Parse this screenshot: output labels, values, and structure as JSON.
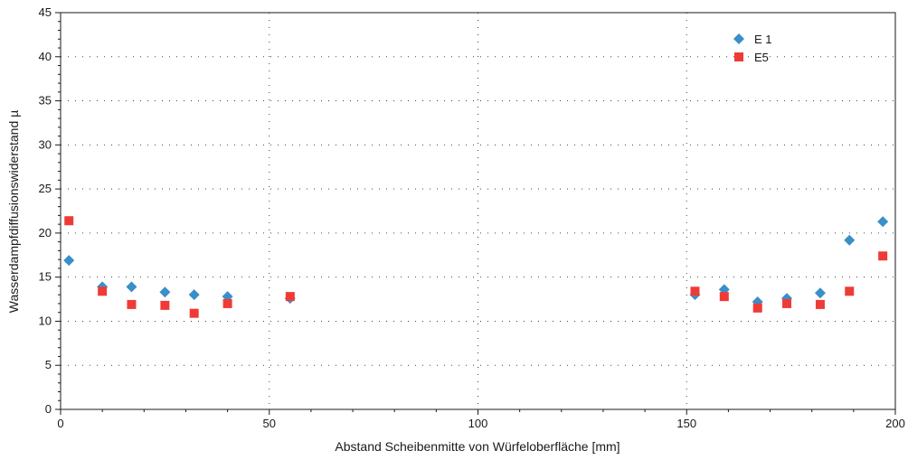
{
  "chart_data": {
    "type": "scatter",
    "xlabel": "Abstand Scheibenmitte von Würfeloberfläche [mm]",
    "ylabel": "Wasserdampfdiffusionswiderstand µ",
    "xlim": [
      0,
      200
    ],
    "ylim": [
      0,
      45
    ],
    "xticks": [
      0,
      50,
      100,
      150,
      200
    ],
    "yticks": [
      0,
      5,
      10,
      15,
      20,
      25,
      30,
      35,
      40,
      45
    ],
    "grid": "dotted",
    "legend_position": "top-right",
    "series": [
      {
        "name": "E 1",
        "marker": "diamond",
        "color": "#3a8fc8",
        "points": [
          [
            2,
            16.9
          ],
          [
            10,
            13.9
          ],
          [
            17,
            13.9
          ],
          [
            25,
            13.3
          ],
          [
            32,
            13.0
          ],
          [
            40,
            12.8
          ],
          [
            55,
            12.6
          ],
          [
            152,
            13.0
          ],
          [
            159,
            13.6
          ],
          [
            167,
            12.2
          ],
          [
            174,
            12.6
          ],
          [
            182,
            13.2
          ],
          [
            189,
            19.2
          ],
          [
            197,
            21.3
          ]
        ]
      },
      {
        "name": "E5",
        "marker": "square",
        "color": "#ef3b36",
        "points": [
          [
            2,
            21.4
          ],
          [
            10,
            13.4
          ],
          [
            17,
            11.9
          ],
          [
            25,
            11.8
          ],
          [
            32,
            10.9
          ],
          [
            40,
            12.0
          ],
          [
            55,
            12.8
          ],
          [
            152,
            13.4
          ],
          [
            159,
            12.8
          ],
          [
            167,
            11.5
          ],
          [
            174,
            12.0
          ],
          [
            182,
            11.9
          ],
          [
            189,
            13.4
          ],
          [
            197,
            17.4
          ]
        ]
      }
    ]
  }
}
